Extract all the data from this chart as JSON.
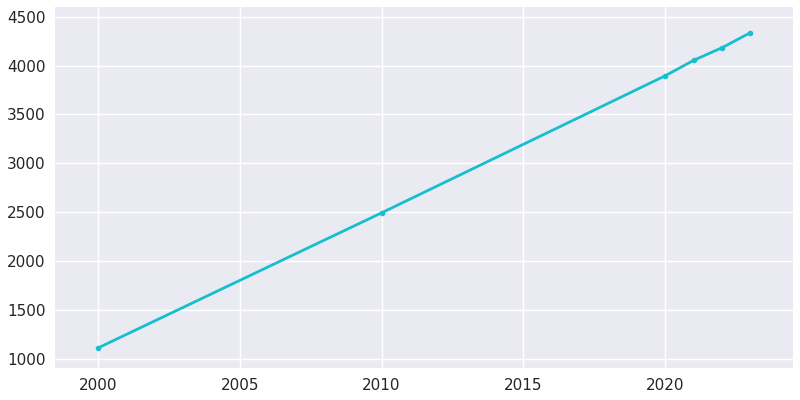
{
  "years": [
    2000,
    2010,
    2020,
    2021,
    2022,
    2023
  ],
  "population": [
    1108,
    2492,
    3896,
    4054,
    4183,
    4337
  ],
  "line_color": "#17BECF",
  "marker": "o",
  "marker_size": 4,
  "linewidth": 2,
  "ylim": [
    900,
    4600
  ],
  "xlim": [
    1998.5,
    2024.5
  ],
  "yticks": [
    1000,
    1500,
    2000,
    2500,
    3000,
    3500,
    4000,
    4500
  ],
  "xticks": [
    2000,
    2005,
    2010,
    2015,
    2020
  ],
  "figsize": [
    8.0,
    4.0
  ],
  "dpi": 100
}
